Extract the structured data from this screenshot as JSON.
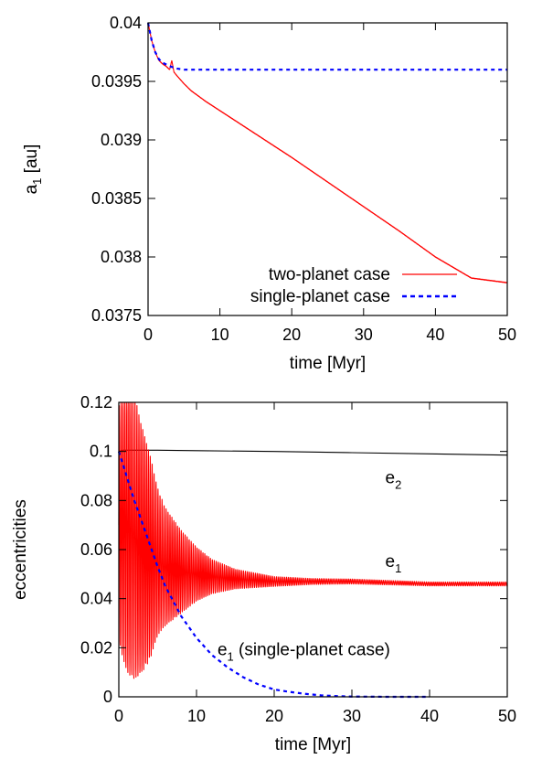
{
  "chart_data": [
    {
      "type": "line",
      "xlabel": "time [Myr]",
      "ylabel": "a",
      "ylabel_sub": "1",
      "ylabel_unit": "[au]",
      "xlim": [
        0,
        50
      ],
      "ylim": [
        0.0375,
        0.04
      ],
      "x_ticks": [
        0,
        10,
        20,
        30,
        40,
        50
      ],
      "y_ticks": [
        0.0375,
        0.038,
        0.0385,
        0.039,
        0.0395,
        0.04
      ],
      "y_tick_labels": [
        "0.0375",
        "0.038",
        "0.0385",
        "0.039",
        "0.0395",
        "0.04"
      ],
      "grid": false,
      "legend_placement": "bottom-right",
      "series": [
        {
          "name": "two-planet case",
          "color": "#ff0000",
          "style": "solid",
          "x": [
            0,
            0.5,
            1,
            1.5,
            2,
            2.5,
            3,
            3.3,
            3.6,
            4,
            5,
            6,
            8,
            10,
            15,
            20,
            25,
            30,
            35,
            40,
            45,
            50
          ],
          "y": [
            0.04,
            0.03985,
            0.03975,
            0.03968,
            0.03965,
            0.03963,
            0.0396,
            0.03968,
            0.03958,
            0.03955,
            0.03948,
            0.03942,
            0.03933,
            0.03925,
            0.03905,
            0.03885,
            0.03864,
            0.03843,
            0.03822,
            0.038,
            0.03782,
            0.03778
          ]
        },
        {
          "name": "single-planet case",
          "color": "#0000ff",
          "style": "dashed",
          "x": [
            0,
            0.5,
            1,
            1.5,
            2,
            3,
            4,
            5,
            6,
            8,
            10,
            15,
            20,
            30,
            40,
            50
          ],
          "y": [
            0.04,
            0.03985,
            0.03975,
            0.03969,
            0.03966,
            0.03963,
            0.03961,
            0.0396,
            0.0396,
            0.0396,
            0.0396,
            0.0396,
            0.0396,
            0.0396,
            0.0396,
            0.0396
          ]
        }
      ]
    },
    {
      "type": "line",
      "xlabel": "time [Myr]",
      "ylabel": "eccentricities",
      "xlim": [
        0,
        50
      ],
      "ylim": [
        0,
        0.12
      ],
      "x_ticks": [
        0,
        10,
        20,
        30,
        40,
        50
      ],
      "y_ticks": [
        0,
        0.02,
        0.04,
        0.06,
        0.08,
        0.1,
        0.12
      ],
      "y_tick_labels": [
        "0",
        "0.02",
        "0.04",
        "0.06",
        "0.08",
        "0.1",
        "0.12"
      ],
      "grid": false,
      "annotations": [
        {
          "text": "e",
          "sub": "2",
          "tail": "",
          "x": 34.3,
          "y": 0.087
        },
        {
          "text": "e",
          "sub": "1",
          "tail": "",
          "x": 34.3,
          "y": 0.053
        },
        {
          "text": "e",
          "sub": "1",
          "tail": " (single-planet case)",
          "x": 12.7,
          "y": 0.017
        }
      ],
      "series": [
        {
          "name": "e2",
          "color": "#000000",
          "style": "solid",
          "x": [
            0,
            0.5,
            1,
            5,
            10,
            20,
            30,
            40,
            50
          ],
          "y": [
            0.1,
            0.1005,
            0.1005,
            0.1005,
            0.1003,
            0.1,
            0.0995,
            0.099,
            0.0985
          ]
        },
        {
          "name": "e1",
          "color": "#ff0000",
          "style": "oscillating",
          "osc_period": 0.25,
          "x": [
            0,
            1,
            2,
            3,
            4,
            5,
            6,
            8,
            10,
            12,
            15,
            20,
            25,
            30,
            40,
            50
          ],
          "center": [
            0.07,
            0.07,
            0.065,
            0.06,
            0.057,
            0.055,
            0.053,
            0.051,
            0.05,
            0.049,
            0.048,
            0.047,
            0.047,
            0.047,
            0.046,
            0.046
          ],
          "amplitude": [
            0.048,
            0.06,
            0.058,
            0.05,
            0.042,
            0.03,
            0.024,
            0.017,
            0.011,
            0.007,
            0.004,
            0.002,
            0.0012,
            0.001,
            0.0008,
            0.0008
          ]
        },
        {
          "name": "e1 (single-planet case)",
          "color": "#0000ff",
          "style": "dashed",
          "x": [
            0,
            1,
            2,
            3,
            4,
            5,
            6,
            7,
            8,
            10,
            12,
            14,
            16,
            18,
            20,
            22,
            24,
            26,
            28,
            30,
            35,
            40
          ],
          "y": [
            0.1,
            0.09,
            0.08,
            0.071,
            0.062,
            0.053,
            0.045,
            0.039,
            0.033,
            0.024,
            0.017,
            0.012,
            0.008,
            0.005,
            0.003,
            0.002,
            0.0012,
            0.0006,
            0.0003,
            0.0001,
            0,
            0
          ]
        }
      ]
    }
  ]
}
